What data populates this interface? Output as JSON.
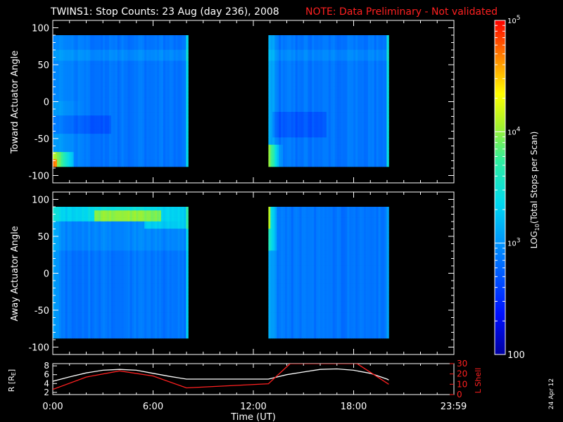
{
  "title": {
    "main": "TWINS1: Stop Counts: 23 Aug (day 236), 2008",
    "note": "NOTE: Data Preliminary - Not validated"
  },
  "date_stamp": "24 Apr 12",
  "colors": {
    "background": "#000000",
    "axes": "#ffffff",
    "note": "#ff2020",
    "lshell": "#ff2020",
    "radius": "#ffffff"
  },
  "chart_data": [
    {
      "type": "heatmap",
      "name": "toward",
      "ylabel": "Toward Actuator Angle",
      "xlim": [
        0,
        24
      ],
      "ylim": [
        -110,
        110
      ],
      "yticks": [
        100,
        50,
        0,
        -50,
        -100
      ],
      "data_extent_y": [
        -88,
        90
      ],
      "data_blocks_hours": [
        [
          0,
          8.1
        ],
        [
          12.9,
          20.1
        ]
      ],
      "base_log_counts": 2.85
    },
    {
      "type": "heatmap",
      "name": "away",
      "ylabel": "Away Actuator Angle",
      "xlim": [
        0,
        24
      ],
      "ylim": [
        -110,
        110
      ],
      "yticks": [
        100,
        50,
        0,
        -50,
        -100
      ],
      "data_extent_y": [
        -88,
        90
      ],
      "data_blocks_hours": [
        [
          0,
          8.1
        ],
        [
          12.9,
          20.1
        ]
      ],
      "base_log_counts": 2.85
    },
    {
      "type": "line",
      "name": "orbit",
      "ylabel_left": "R [R",
      "ylabel_left_sub": "E",
      "ylabel_left_end": "]",
      "ylabel_right": "L Shell",
      "xlabel": "Time (UT)",
      "xticks": [
        "0:00",
        "6:00",
        "12:00",
        "18:00",
        "23:59"
      ],
      "xtick_hours": [
        0,
        6,
        12,
        18,
        23.98
      ],
      "xlim": [
        0,
        24
      ],
      "ylim_left": [
        1.5,
        8.5
      ],
      "yticks_left": [
        2,
        4,
        6,
        8
      ],
      "ylim_right": [
        0,
        30
      ],
      "yticks_right": [
        0,
        10,
        20,
        30
      ],
      "series": [
        {
          "axis": "left",
          "x": [
            0,
            1,
            2,
            3,
            4,
            5,
            6,
            7,
            8,
            12.9,
            14,
            15,
            16,
            17,
            18,
            19,
            20,
            20.1
          ],
          "y": [
            4.5,
            5.5,
            6.4,
            7.0,
            7.2,
            7.0,
            6.3,
            5.6,
            5.0,
            5.0,
            6.0,
            6.6,
            7.2,
            7.3,
            7.0,
            6.3,
            5.0,
            4.8
          ]
        },
        {
          "axis": "right",
          "x": [
            0,
            2,
            4,
            6,
            8,
            12.9,
            14.2,
            18.2,
            20.1
          ],
          "y": [
            5,
            17,
            23,
            18,
            6.5,
            10.5,
            30,
            30,
            10
          ]
        }
      ]
    },
    {
      "type": "colorbar",
      "label": "LOG",
      "label_sub": "10",
      "label_end": "(Total Stops per Scan)",
      "ticks": [
        {
          "value": 5,
          "base": "10",
          "exp": "5"
        },
        {
          "value": 4,
          "base": "10",
          "exp": "4"
        },
        {
          "value": 3,
          "base": "10",
          "exp": "3"
        },
        {
          "value": 2,
          "base": "100",
          "exp": ""
        }
      ],
      "range": [
        2,
        5
      ]
    }
  ]
}
